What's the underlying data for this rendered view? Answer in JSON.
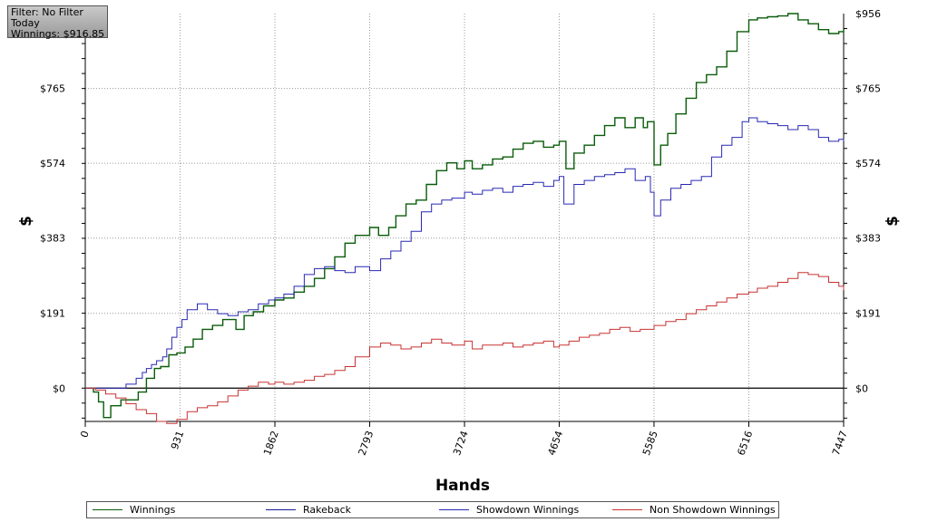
{
  "info": {
    "filter": "Filter: No Filter",
    "period": "Today",
    "winnings": "Winnings: $916.85"
  },
  "chart_data": {
    "type": "line",
    "xlabel": "Hands",
    "ylabel": "$",
    "xlim": [
      0,
      7447
    ],
    "ylim": [
      -85,
      956
    ],
    "x_ticks": [
      "0",
      "931",
      "1862",
      "2793",
      "3724",
      "4654",
      "5585",
      "6516",
      "7447"
    ],
    "y_ticks": [
      "$0",
      "$191",
      "$383",
      "$574",
      "$765",
      "$956"
    ],
    "grid": true,
    "legend_position": "bottom",
    "series": [
      {
        "name": "Winnings",
        "color": "#0a5c0a",
        "x": [
          0,
          80,
          130,
          180,
          250,
          350,
          450,
          520,
          600,
          680,
          740,
          820,
          900,
          980,
          1060,
          1150,
          1250,
          1350,
          1480,
          1560,
          1650,
          1750,
          1862,
          1950,
          2050,
          2150,
          2250,
          2350,
          2450,
          2550,
          2650,
          2793,
          2880,
          2980,
          3050,
          3150,
          3250,
          3350,
          3450,
          3550,
          3650,
          3724,
          3800,
          3900,
          4000,
          4100,
          4200,
          4300,
          4400,
          4500,
          4600,
          4654,
          4720,
          4800,
          4900,
          5000,
          5100,
          5200,
          5300,
          5400,
          5480,
          5520,
          5585,
          5650,
          5720,
          5800,
          5900,
          6000,
          6100,
          6200,
          6300,
          6400,
          6516,
          6600,
          6700,
          6800,
          6900,
          7000,
          7100,
          7200,
          7300,
          7400,
          7447
        ],
        "y": [
          0,
          -10,
          -35,
          -75,
          -45,
          -30,
          -30,
          -10,
          25,
          50,
          55,
          85,
          90,
          105,
          125,
          150,
          160,
          175,
          150,
          185,
          195,
          210,
          225,
          230,
          245,
          260,
          280,
          305,
          335,
          370,
          390,
          410,
          390,
          410,
          440,
          470,
          480,
          520,
          555,
          575,
          560,
          580,
          560,
          570,
          585,
          590,
          610,
          625,
          630,
          615,
          620,
          630,
          560,
          600,
          620,
          645,
          670,
          690,
          665,
          690,
          665,
          680,
          570,
          620,
          650,
          700,
          740,
          780,
          800,
          820,
          860,
          910,
          940,
          945,
          948,
          950,
          956,
          940,
          930,
          915,
          905,
          910,
          916
        ]
      },
      {
        "name": "Rakeback",
        "color": "#1a1a96",
        "x": [],
        "y": []
      },
      {
        "name": "Showdown Winnings",
        "color": "#2828b4",
        "x": [
          0,
          100,
          200,
          300,
          400,
          500,
          560,
          600,
          650,
          700,
          760,
          800,
          850,
          900,
          950,
          1000,
          1100,
          1200,
          1300,
          1400,
          1500,
          1600,
          1700,
          1800,
          1862,
          1950,
          2050,
          2150,
          2250,
          2350,
          2450,
          2550,
          2650,
          2793,
          2900,
          3000,
          3100,
          3200,
          3300,
          3400,
          3500,
          3600,
          3724,
          3800,
          3900,
          4000,
          4100,
          4200,
          4300,
          4400,
          4500,
          4600,
          4654,
          4700,
          4800,
          4900,
          5000,
          5100,
          5200,
          5300,
          5400,
          5500,
          5550,
          5585,
          5650,
          5750,
          5850,
          5950,
          6050,
          6150,
          6250,
          6350,
          6450,
          6516,
          6600,
          6700,
          6800,
          6900,
          7000,
          7100,
          7200,
          7300,
          7400,
          7447
        ],
        "y": [
          0,
          0,
          0,
          0,
          10,
          25,
          40,
          50,
          60,
          70,
          80,
          100,
          130,
          155,
          175,
          200,
          215,
          200,
          190,
          185,
          195,
          200,
          215,
          225,
          230,
          240,
          260,
          290,
          305,
          310,
          300,
          295,
          310,
          300,
          330,
          350,
          375,
          400,
          450,
          470,
          480,
          485,
          500,
          495,
          505,
          510,
          500,
          515,
          520,
          525,
          515,
          530,
          540,
          470,
          520,
          530,
          540,
          545,
          550,
          560,
          530,
          540,
          500,
          440,
          480,
          510,
          520,
          530,
          540,
          590,
          620,
          640,
          680,
          690,
          680,
          675,
          670,
          660,
          670,
          660,
          640,
          630,
          635,
          630
        ]
      },
      {
        "name": "Non Showdown Winnings",
        "color": "#c83232",
        "x": [
          0,
          100,
          200,
          300,
          400,
          500,
          600,
          700,
          800,
          900,
          1000,
          1100,
          1200,
          1300,
          1400,
          1500,
          1600,
          1700,
          1800,
          1862,
          1950,
          2050,
          2150,
          2250,
          2350,
          2450,
          2550,
          2650,
          2793,
          2900,
          3000,
          3100,
          3200,
          3300,
          3400,
          3500,
          3600,
          3724,
          3800,
          3900,
          4000,
          4100,
          4200,
          4300,
          4400,
          4500,
          4600,
          4654,
          4750,
          4850,
          4950,
          5050,
          5150,
          5250,
          5350,
          5450,
          5585,
          5700,
          5800,
          5900,
          6000,
          6100,
          6200,
          6300,
          6400,
          6516,
          6600,
          6700,
          6800,
          6900,
          7000,
          7100,
          7200,
          7300,
          7400,
          7447
        ],
        "y": [
          0,
          -5,
          -15,
          -25,
          -40,
          -55,
          -65,
          -85,
          -90,
          -80,
          -60,
          -50,
          -45,
          -35,
          -20,
          -5,
          5,
          15,
          10,
          15,
          10,
          15,
          20,
          30,
          35,
          45,
          55,
          80,
          105,
          115,
          110,
          100,
          105,
          115,
          125,
          115,
          110,
          120,
          100,
          110,
          110,
          115,
          105,
          110,
          115,
          120,
          105,
          110,
          120,
          130,
          135,
          140,
          150,
          155,
          145,
          150,
          160,
          170,
          175,
          190,
          200,
          210,
          220,
          230,
          240,
          245,
          255,
          260,
          270,
          280,
          295,
          290,
          285,
          270,
          260,
          250
        ]
      }
    ]
  },
  "legend": [
    {
      "label": "Winnings",
      "color": "#0a5c0a"
    },
    {
      "label": "Rakeback",
      "color": "#1a1a96"
    },
    {
      "label": "Showdown Winnings",
      "color": "#2828b4"
    },
    {
      "label": "Non Showdown Winnings",
      "color": "#c83232"
    }
  ]
}
